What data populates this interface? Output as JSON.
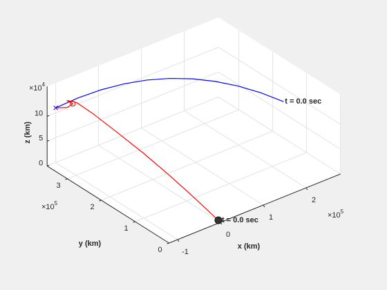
{
  "chart_data": {
    "type": "line3d",
    "xlabel": "x (km)",
    "ylabel": "y (km)",
    "zlabel": "z (km)",
    "xlim": [
      -1.2,
      2.8
    ],
    "ylim": [
      0,
      3.6
    ],
    "zlim": [
      0,
      16
    ],
    "xticks": [
      -1,
      0,
      1,
      2
    ],
    "yticks": [
      0,
      1,
      2,
      3
    ],
    "zticks": [
      0,
      5,
      10
    ],
    "xexponent": {
      "base": "×10",
      "exp": "5"
    },
    "yexponent": {
      "base": "×10",
      "exp": "5"
    },
    "zexponent": {
      "base": "×10",
      "exp": "4"
    },
    "grid": true,
    "series": [
      {
        "color": "#0000ff",
        "x": [
          2.5,
          2.15,
          1.8,
          1.45,
          1.1,
          0.75,
          0.4,
          0.05,
          -0.3,
          -0.65,
          -1
        ],
        "y": [
          1.3,
          1.53,
          1.76,
          1.99,
          2.22,
          2.45,
          2.68,
          2.91,
          3.14,
          3.37,
          3.6
        ],
        "z": [
          10,
          12.01,
          13.59,
          14.75,
          15.49,
          15.8,
          15.69,
          15.15,
          14.19,
          12.81,
          11
        ]
      },
      {
        "color": "#ff0000",
        "x": [
          -1.0,
          -0.85,
          -0.8,
          -0.9,
          -0.75,
          -0.6,
          -0.45,
          -0.3,
          -0.18,
          -0.08,
          0
        ],
        "y": [
          3.6,
          3.45,
          3.35,
          3.4,
          3.3,
          3.0,
          2.5,
          1.9,
          1.3,
          0.7,
          0
        ],
        "z": [
          11,
          11.2,
          12.2,
          13,
          12.5,
          11,
          9,
          6.8,
          4.6,
          2.4,
          0
        ]
      }
    ],
    "annotations": [
      {
        "text": "t = 0.0 sec"
      },
      {
        "text": "t = 0.0 sec"
      }
    ]
  }
}
